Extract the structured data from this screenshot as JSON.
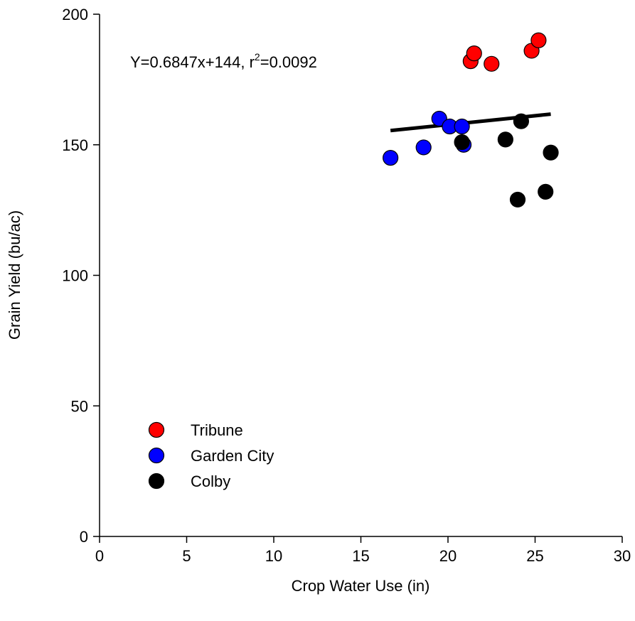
{
  "chart_data": {
    "type": "scatter",
    "title": "",
    "xlabel": "Crop Water Use (in)",
    "ylabel": "Grain Yield (bu/ac)",
    "xlim": [
      0,
      30
    ],
    "ylim": [
      0,
      200
    ],
    "xticks": [
      0,
      5,
      10,
      15,
      20,
      25,
      30
    ],
    "yticks": [
      0,
      50,
      100,
      150,
      200
    ],
    "xtick_labels": [
      "0",
      "5",
      "10",
      "15",
      "20",
      "25",
      "30"
    ],
    "ytick_labels": [
      "0",
      "50",
      "100",
      "150",
      "200"
    ],
    "grid": false,
    "legend_position": "bottom-left",
    "series": [
      {
        "name": "Tribune",
        "color": "#ff0000",
        "points": [
          {
            "x": 21.3,
            "y": 182
          },
          {
            "x": 21.5,
            "y": 185
          },
          {
            "x": 22.5,
            "y": 181
          },
          {
            "x": 24.8,
            "y": 186
          },
          {
            "x": 25.2,
            "y": 190
          }
        ]
      },
      {
        "name": "Garden City",
        "color": "#0000ff",
        "points": [
          {
            "x": 16.7,
            "y": 145
          },
          {
            "x": 18.6,
            "y": 149
          },
          {
            "x": 19.5,
            "y": 160
          },
          {
            "x": 20.1,
            "y": 157
          },
          {
            "x": 20.8,
            "y": 157
          },
          {
            "x": 20.9,
            "y": 150
          }
        ]
      },
      {
        "name": "Colby",
        "color": "#000000",
        "points": [
          {
            "x": 20.8,
            "y": 151
          },
          {
            "x": 23.3,
            "y": 152
          },
          {
            "x": 24.2,
            "y": 159
          },
          {
            "x": 24.0,
            "y": 129
          },
          {
            "x": 25.6,
            "y": 132
          },
          {
            "x": 25.9,
            "y": 147
          }
        ]
      }
    ],
    "regression": {
      "slope": 0.6847,
      "intercept": 144,
      "x_range": [
        16.7,
        25.9
      ],
      "color": "#000000"
    },
    "annotation": {
      "equation": "Y=0.6847x+144, r",
      "superscript": "2",
      "r2_value": "=0.0092"
    }
  }
}
